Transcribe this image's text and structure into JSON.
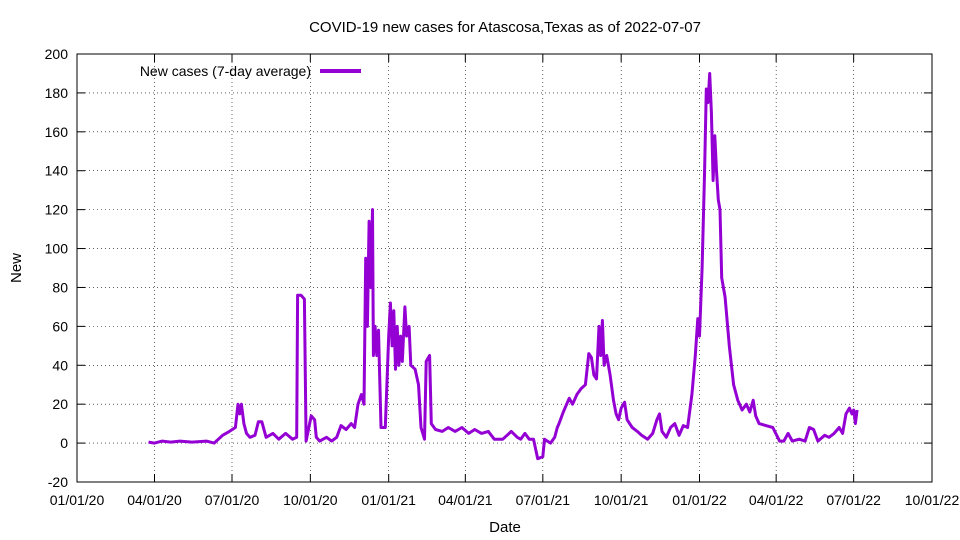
{
  "chart_data": {
    "type": "line",
    "title": "COVID-19 new cases for Atascosa,Texas as of 2022-07-07",
    "xlabel": "Date",
    "ylabel": "New",
    "ylim": [
      -20,
      200
    ],
    "y_ticks": [
      -20,
      0,
      20,
      40,
      60,
      80,
      100,
      120,
      140,
      160,
      180,
      200
    ],
    "xlim": [
      "2020-01-01",
      "2022-10-01"
    ],
    "x_ticks": [
      {
        "date": "2020-01-01",
        "label": "01/01/20"
      },
      {
        "date": "2020-04-01",
        "label": "04/01/20"
      },
      {
        "date": "2020-07-01",
        "label": "07/01/20"
      },
      {
        "date": "2020-10-01",
        "label": "10/01/20"
      },
      {
        "date": "2021-01-01",
        "label": "01/01/21"
      },
      {
        "date": "2021-04-01",
        "label": "04/01/21"
      },
      {
        "date": "2021-07-01",
        "label": "07/01/21"
      },
      {
        "date": "2021-10-01",
        "label": "10/01/21"
      },
      {
        "date": "2022-01-01",
        "label": "01/01/22"
      },
      {
        "date": "2022-04-01",
        "label": "04/01/22"
      },
      {
        "date": "2022-07-01",
        "label": "07/01/22"
      },
      {
        "date": "2022-10-01",
        "label": "10/01/22"
      }
    ],
    "grid": true,
    "legend_position": "top-left",
    "series": [
      {
        "name": "New cases (7-day average)",
        "color": "#9400d3",
        "points": [
          [
            "2020-03-25",
            0.5
          ],
          [
            "2020-04-01",
            0.0
          ],
          [
            "2020-04-10",
            1.0
          ],
          [
            "2020-04-20",
            0.5
          ],
          [
            "2020-05-01",
            1.0
          ],
          [
            "2020-05-15",
            0.5
          ],
          [
            "2020-06-01",
            1.0
          ],
          [
            "2020-06-10",
            0.0
          ],
          [
            "2020-06-20",
            4.0
          ],
          [
            "2020-06-28",
            6.0
          ],
          [
            "2020-07-05",
            8.0
          ],
          [
            "2020-07-08",
            20.0
          ],
          [
            "2020-07-10",
            15.0
          ],
          [
            "2020-07-12",
            20.0
          ],
          [
            "2020-07-15",
            10.0
          ],
          [
            "2020-07-18",
            5.0
          ],
          [
            "2020-07-22",
            3.0
          ],
          [
            "2020-07-28",
            4.0
          ],
          [
            "2020-08-01",
            11.0
          ],
          [
            "2020-08-05",
            11.0
          ],
          [
            "2020-08-10",
            3.0
          ],
          [
            "2020-08-18",
            5.0
          ],
          [
            "2020-08-25",
            2.0
          ],
          [
            "2020-09-02",
            5.0
          ],
          [
            "2020-09-10",
            2.0
          ],
          [
            "2020-09-15",
            3.0
          ],
          [
            "2020-09-16",
            76.0
          ],
          [
            "2020-09-20",
            76.0
          ],
          [
            "2020-09-24",
            74.0
          ],
          [
            "2020-09-26",
            1.0
          ],
          [
            "2020-10-02",
            14.0
          ],
          [
            "2020-10-06",
            12.0
          ],
          [
            "2020-10-08",
            3.0
          ],
          [
            "2020-10-12",
            1.0
          ],
          [
            "2020-10-20",
            3.0
          ],
          [
            "2020-10-26",
            1.0
          ],
          [
            "2020-11-01",
            3.0
          ],
          [
            "2020-11-06",
            9.0
          ],
          [
            "2020-11-12",
            7.0
          ],
          [
            "2020-11-18",
            10.0
          ],
          [
            "2020-11-22",
            8.0
          ],
          [
            "2020-11-26",
            20.0
          ],
          [
            "2020-11-30",
            25.0
          ],
          [
            "2020-12-03",
            20.0
          ],
          [
            "2020-12-05",
            95.0
          ],
          [
            "2020-12-07",
            60.0
          ],
          [
            "2020-12-09",
            114.0
          ],
          [
            "2020-12-11",
            80.0
          ],
          [
            "2020-12-13",
            120.0
          ],
          [
            "2020-12-14",
            45.0
          ],
          [
            "2020-12-16",
            60.0
          ],
          [
            "2020-12-18",
            45.0
          ],
          [
            "2020-12-20",
            58.0
          ],
          [
            "2020-12-23",
            8.0
          ],
          [
            "2020-12-28",
            8.0
          ],
          [
            "2021-01-01",
            55.0
          ],
          [
            "2021-01-03",
            72.0
          ],
          [
            "2021-01-05",
            50.0
          ],
          [
            "2021-01-07",
            68.0
          ],
          [
            "2021-01-09",
            38.0
          ],
          [
            "2021-01-11",
            60.0
          ],
          [
            "2021-01-13",
            40.0
          ],
          [
            "2021-01-15",
            55.0
          ],
          [
            "2021-01-17",
            42.0
          ],
          [
            "2021-01-20",
            70.0
          ],
          [
            "2021-01-22",
            55.0
          ],
          [
            "2021-01-25",
            60.0
          ],
          [
            "2021-01-27",
            40.0
          ],
          [
            "2021-02-01",
            38.0
          ],
          [
            "2021-02-05",
            30.0
          ],
          [
            "2021-02-08",
            8.0
          ],
          [
            "2021-02-12",
            2.0
          ],
          [
            "2021-02-14",
            42.0
          ],
          [
            "2021-02-18",
            45.0
          ],
          [
            "2021-02-20",
            10.0
          ],
          [
            "2021-02-25",
            7.0
          ],
          [
            "2021-03-05",
            6.0
          ],
          [
            "2021-03-12",
            8.0
          ],
          [
            "2021-03-20",
            6.0
          ],
          [
            "2021-03-28",
            8.0
          ],
          [
            "2021-04-05",
            5.0
          ],
          [
            "2021-04-12",
            7.0
          ],
          [
            "2021-04-20",
            5.0
          ],
          [
            "2021-04-28",
            6.0
          ],
          [
            "2021-05-05",
            2.0
          ],
          [
            "2021-05-15",
            2.0
          ],
          [
            "2021-05-25",
            6.0
          ],
          [
            "2021-06-01",
            3.0
          ],
          [
            "2021-06-05",
            2.0
          ],
          [
            "2021-06-10",
            5.0
          ],
          [
            "2021-06-15",
            2.0
          ],
          [
            "2021-06-20",
            2.0
          ],
          [
            "2021-06-25",
            -8.0
          ],
          [
            "2021-07-01",
            -7.0
          ],
          [
            "2021-07-03",
            2.0
          ],
          [
            "2021-07-10",
            0.0
          ],
          [
            "2021-07-15",
            3.0
          ],
          [
            "2021-07-18",
            8.0
          ],
          [
            "2021-07-20",
            10.0
          ],
          [
            "2021-07-25",
            16.0
          ],
          [
            "2021-08-01",
            23.0
          ],
          [
            "2021-08-05",
            20.0
          ],
          [
            "2021-08-10",
            25.0
          ],
          [
            "2021-08-15",
            28.0
          ],
          [
            "2021-08-20",
            30.0
          ],
          [
            "2021-08-24",
            46.0
          ],
          [
            "2021-08-27",
            44.0
          ],
          [
            "2021-08-30",
            35.0
          ],
          [
            "2021-09-02",
            33.0
          ],
          [
            "2021-09-05",
            60.0
          ],
          [
            "2021-09-07",
            45.0
          ],
          [
            "2021-09-09",
            63.0
          ],
          [
            "2021-09-11",
            40.0
          ],
          [
            "2021-09-14",
            45.0
          ],
          [
            "2021-09-18",
            35.0
          ],
          [
            "2021-09-22",
            22.0
          ],
          [
            "2021-09-25",
            15.0
          ],
          [
            "2021-09-28",
            12.0
          ],
          [
            "2021-10-01",
            18.0
          ],
          [
            "2021-10-05",
            21.0
          ],
          [
            "2021-10-08",
            12.0
          ],
          [
            "2021-10-14",
            8.0
          ],
          [
            "2021-10-20",
            6.0
          ],
          [
            "2021-10-25",
            4.0
          ],
          [
            "2021-11-01",
            2.0
          ],
          [
            "2021-11-07",
            5.0
          ],
          [
            "2021-11-12",
            12.0
          ],
          [
            "2021-11-15",
            15.0
          ],
          [
            "2021-11-18",
            6.0
          ],
          [
            "2021-11-23",
            3.0
          ],
          [
            "2021-11-28",
            8.0
          ],
          [
            "2021-12-03",
            10.0
          ],
          [
            "2021-12-08",
            4.0
          ],
          [
            "2021-12-13",
            9.0
          ],
          [
            "2021-12-18",
            8.0
          ],
          [
            "2021-12-23",
            25.0
          ],
          [
            "2021-12-27",
            45.0
          ],
          [
            "2021-12-30",
            64.0
          ],
          [
            "2022-01-01",
            55.0
          ],
          [
            "2022-01-04",
            90.0
          ],
          [
            "2022-01-07",
            140.0
          ],
          [
            "2022-01-09",
            182.0
          ],
          [
            "2022-01-11",
            175.0
          ],
          [
            "2022-01-13",
            190.0
          ],
          [
            "2022-01-15",
            170.0
          ],
          [
            "2022-01-17",
            135.0
          ],
          [
            "2022-01-19",
            158.0
          ],
          [
            "2022-01-21",
            140.0
          ],
          [
            "2022-01-23",
            125.0
          ],
          [
            "2022-01-25",
            120.0
          ],
          [
            "2022-01-27",
            85.0
          ],
          [
            "2022-01-31",
            75.0
          ],
          [
            "2022-02-05",
            50.0
          ],
          [
            "2022-02-10",
            30.0
          ],
          [
            "2022-02-15",
            22.0
          ],
          [
            "2022-02-20",
            17.0
          ],
          [
            "2022-02-25",
            20.0
          ],
          [
            "2022-03-01",
            16.0
          ],
          [
            "2022-03-05",
            22.0
          ],
          [
            "2022-03-08",
            14.0
          ],
          [
            "2022-03-12",
            10.0
          ],
          [
            "2022-03-20",
            9.0
          ],
          [
            "2022-03-28",
            8.0
          ],
          [
            "2022-04-05",
            1.0
          ],
          [
            "2022-04-10",
            1.0
          ],
          [
            "2022-04-15",
            5.0
          ],
          [
            "2022-04-20",
            1.0
          ],
          [
            "2022-04-28",
            2.0
          ],
          [
            "2022-05-05",
            1.0
          ],
          [
            "2022-05-10",
            8.0
          ],
          [
            "2022-05-15",
            7.0
          ],
          [
            "2022-05-20",
            1.0
          ],
          [
            "2022-05-28",
            4.0
          ],
          [
            "2022-06-02",
            3.0
          ],
          [
            "2022-06-08",
            5.0
          ],
          [
            "2022-06-14",
            8.0
          ],
          [
            "2022-06-18",
            5.0
          ],
          [
            "2022-06-22",
            15.0
          ],
          [
            "2022-06-26",
            18.0
          ],
          [
            "2022-06-29",
            15.0
          ],
          [
            "2022-07-01",
            17.0
          ],
          [
            "2022-07-03",
            10.0
          ],
          [
            "2022-07-05",
            17.0
          ]
        ]
      }
    ]
  }
}
